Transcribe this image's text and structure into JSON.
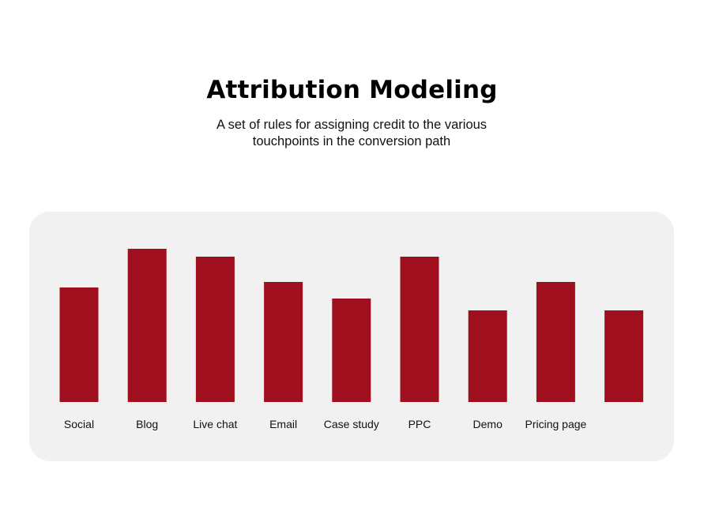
{
  "header": {
    "title": "Attribution Modeling",
    "subtitle": "A set of rules for assigning credit to the various touchpoints in the conversion path"
  },
  "colors": {
    "bar": "#a00f1d",
    "panel": "#f1f1f1"
  },
  "chart_data": {
    "type": "bar",
    "title": "",
    "xlabel": "",
    "ylabel": "",
    "categories": [
      "Social",
      "Blog",
      "Live chat",
      "Email",
      "Case study",
      "PPC",
      "Demo",
      "Pricing page",
      ""
    ],
    "values": [
      145,
      194,
      184,
      152,
      131,
      184,
      116,
      152,
      116
    ],
    "ylim": [
      0,
      200
    ],
    "grid": false,
    "legend": "none"
  }
}
